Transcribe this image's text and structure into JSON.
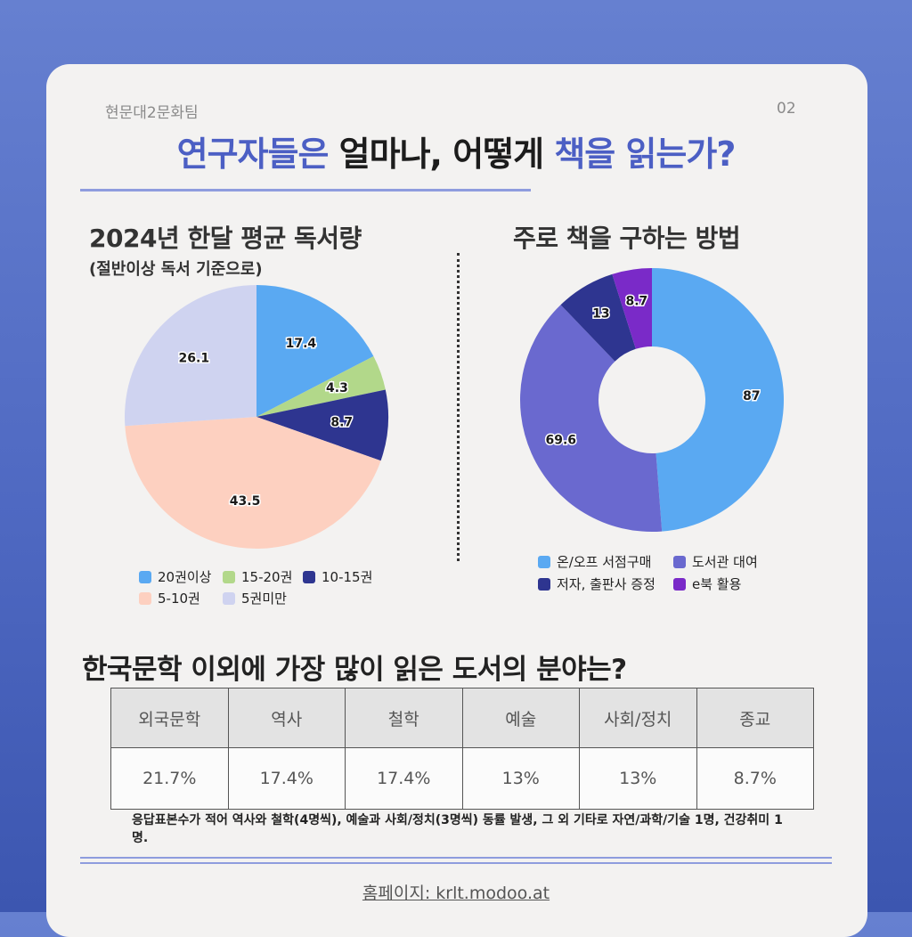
{
  "header": {
    "team": "현문대2문화팀",
    "page_number": "02",
    "title_part1": "연구자들은",
    "title_part2": " 얼마나, 어떻게 ",
    "title_part3": "책을 읽는가?"
  },
  "colors": {
    "accent": "#4c5fc4",
    "slice_20plus": "#5aa9f2",
    "slice_15_20": "#b2d88a",
    "slice_10_15": "#2e3590",
    "slice_5_10": "#fdd0c0",
    "slice_under5": "#cfd3f0",
    "donut_bookstore": "#5aa9f2",
    "donut_library": "#6a69cf",
    "donut_author": "#2e3590",
    "donut_ebook": "#7a2ac8"
  },
  "chart_data": [
    {
      "type": "pie",
      "title": "2024년 한달 평균 독서량",
      "subtitle": "(절반이상 독서 기준으로)",
      "categories": [
        "20권이상",
        "15-20권",
        "10-15권",
        "5-10권",
        "5권미만"
      ],
      "values": [
        17.4,
        4.3,
        8.7,
        43.5,
        26.1
      ],
      "legend_position": "bottom"
    },
    {
      "type": "pie",
      "donut": true,
      "title": "주로 책을 구하는 방법",
      "categories": [
        "온/오프 서점구매",
        "도서관 대여",
        "저자, 출판사 증정",
        "e북 활용"
      ],
      "values": [
        87,
        69.6,
        13,
        8.7
      ],
      "legend_position": "bottom"
    },
    {
      "type": "table",
      "title": "한국문학 이외에 가장 많이 읽은 도서의 분야는?",
      "categories": [
        "외국문학",
        "역사",
        "철학",
        "예술",
        "사회/정치",
        "종교"
      ],
      "values": [
        "21.7%",
        "17.4%",
        "17.4%",
        "13%",
        "13%",
        "8.7%"
      ]
    }
  ],
  "note": "응답표본수가 적어 역사와 철학(4명씩), 예술과 사회/정치(3명씩) 동률 발생, 그 외 기타로 자연/과학/기술 1명, 건강취미 1명.",
  "footer": {
    "homepage": "홈페이지: krlt.modoo.at"
  }
}
